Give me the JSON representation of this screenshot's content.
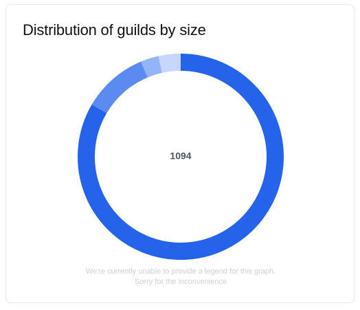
{
  "chart_data": {
    "type": "doughnut",
    "title": "Distribution of guilds by size",
    "total": 1094,
    "values": [
      913,
      112,
      31,
      38
    ],
    "colors": [
      "#2563eb",
      "#5b8af0",
      "#93b4f7",
      "#c7d7fb"
    ],
    "note": [
      "We're currently unable to provide a legend for this graph.",
      "Sorry for the inconvenience"
    ]
  }
}
